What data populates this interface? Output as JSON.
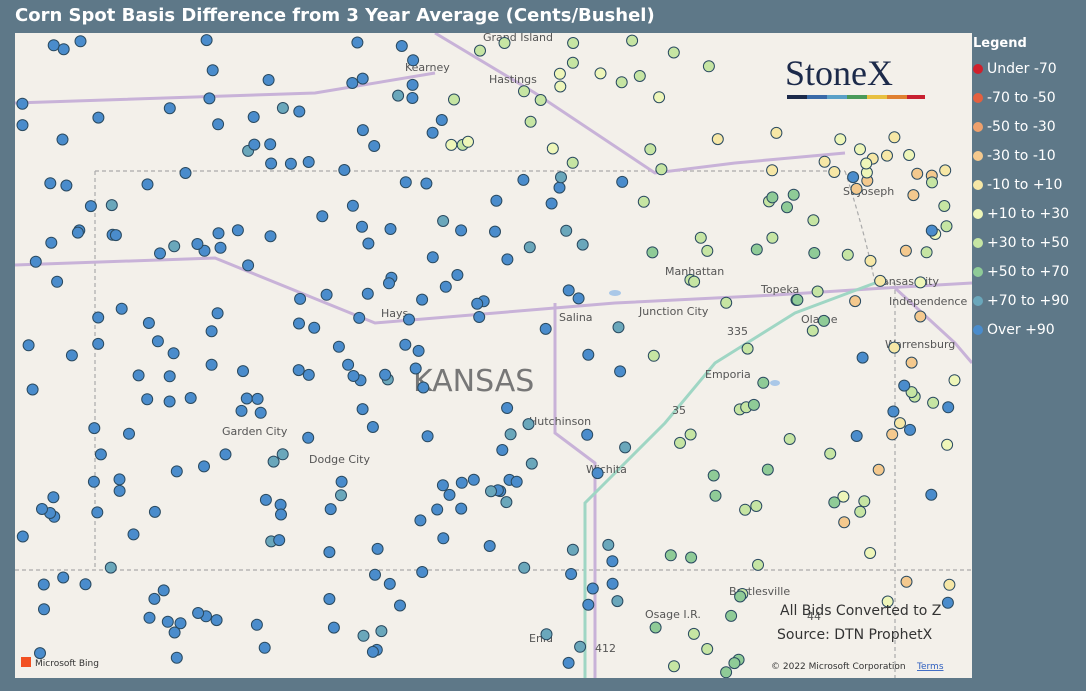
{
  "title": "Corn Spot Basis Difference from 3 Year Average (Cents/Bushel)",
  "legend": {
    "title": "Legend",
    "items": [
      {
        "label": "Under -70",
        "color": "#d0202c"
      },
      {
        "label": "-70 to -50",
        "color": "#e4603f"
      },
      {
        "label": "-50 to -30",
        "color": "#eea06c"
      },
      {
        "label": "-30 to -10",
        "color": "#f4c98e"
      },
      {
        "label": "-10 to +10",
        "color": "#f6e7a6"
      },
      {
        "label": "+10 to +30",
        "color": "#eef6b9"
      },
      {
        "label": "+30 to +50",
        "color": "#c6e5a3"
      },
      {
        "label": "+50 to +70",
        "color": "#8fcb97"
      },
      {
        "label": "+70 to +90",
        "color": "#6aa7bb"
      },
      {
        "label": "Over +90",
        "color": "#4a8ccc"
      }
    ]
  },
  "map": {
    "labels": [
      "Grand Island",
      "Kearney",
      "Hastings",
      "St Joseph",
      "Manhattan",
      "Topeka",
      "Kansas City",
      "Independence",
      "Junction City",
      "Hays",
      "Salina",
      "Olathe",
      "KANSAS",
      "Emporia",
      "Warrensburg",
      "Garden City",
      "Dodge City",
      "Hutchinson",
      "Wichita",
      "Bartlesville",
      "Osage I.R.",
      "Enid",
      "335",
      "35",
      "44",
      "412"
    ],
    "logo": "StoneX",
    "bing": "Microsoft Bing",
    "copyright": "© 2022 Microsoft Corporation",
    "terms": "Terms"
  },
  "notes": [
    "All Bids Converted to Z",
    "Source: DTN ProphetX"
  ]
}
